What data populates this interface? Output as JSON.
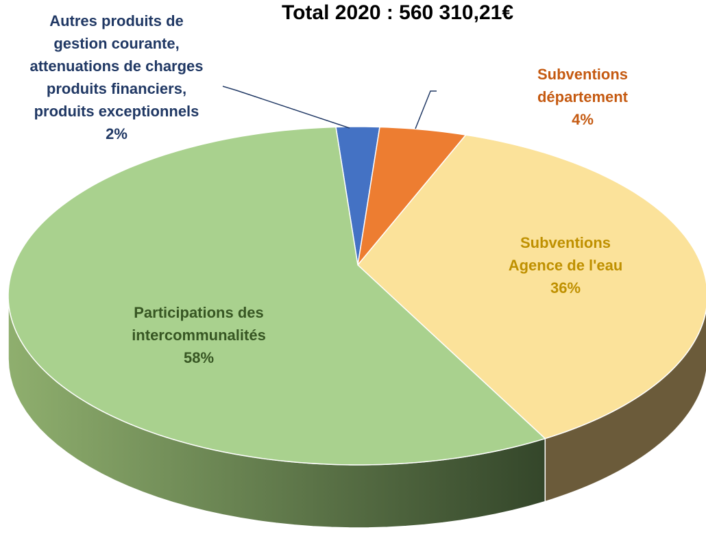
{
  "chart_data": {
    "type": "pie3d",
    "title": "Total 2020 : 560 310,21€",
    "categories": [
      "Autres produits de\ngestion courante,\nattenuations de charges\nproduits financiers,\nproduits exceptionnels",
      "Subventions département",
      "Subventions\nAgence de l'eau",
      "Participations des\nintercommunalités"
    ],
    "values": [
      2,
      4,
      36,
      58
    ],
    "value_labels": [
      "2%",
      "4%",
      "36%",
      "58%"
    ],
    "colors": [
      "#4472c4",
      "#ed7d31",
      "#fbe29a",
      "#a9d18e"
    ],
    "label_colors": [
      "#203864",
      "#c55a11",
      "#bf9000",
      "#375623"
    ]
  }
}
